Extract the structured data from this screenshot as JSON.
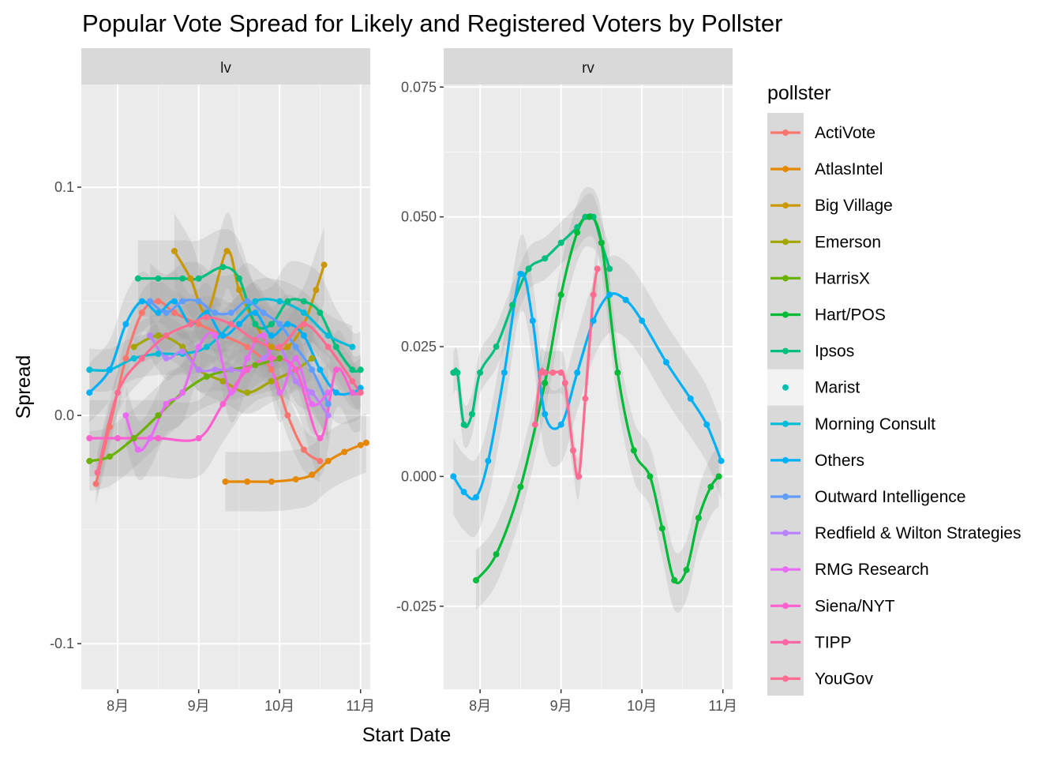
{
  "chart_data": {
    "type": "line",
    "title": "Popular Vote Spread for Likely and Registered Voters by Pollster",
    "xlabel": "Start Date",
    "ylabel": "Spread",
    "x_ticks": [
      "8月",
      "9月",
      "10月",
      "11月"
    ],
    "legend": {
      "title": "pollster",
      "position": "right",
      "entries": [
        {
          "name": "ActiVote",
          "color": "#F8766D"
        },
        {
          "name": "AtlasIntel",
          "color": "#E58700"
        },
        {
          "name": "Big Village",
          "color": "#C99800"
        },
        {
          "name": "Emerson",
          "color": "#A3A500"
        },
        {
          "name": "HarrisX",
          "color": "#6BB100"
        },
        {
          "name": "Hart/POS",
          "color": "#00BA38"
        },
        {
          "name": "Ipsos",
          "color": "#00BF7D"
        },
        {
          "name": "Marist",
          "color": "#00C0AF"
        },
        {
          "name": "Morning Consult",
          "color": "#00BCD8"
        },
        {
          "name": "Others",
          "color": "#00B0F6"
        },
        {
          "name": "Outward Intelligence",
          "color": "#619CFF"
        },
        {
          "name": "Redfield & Wilton Strategies",
          "color": "#B983FF"
        },
        {
          "name": "RMG Research",
          "color": "#E76BF3"
        },
        {
          "name": "Siena/NYT",
          "color": "#FD61D1"
        },
        {
          "name": "TIPP",
          "color": "#FF67A4"
        },
        {
          "name": "YouGov",
          "color": "#FF6C91"
        }
      ]
    },
    "grid": true,
    "panels": [
      {
        "label": "lv",
        "ylim": [
          -0.12,
          0.145
        ],
        "y_ticks": [
          -0.1,
          0.0,
          0.1
        ],
        "y_tick_labels": [
          "-0.1",
          "0.0",
          "0.1"
        ],
        "series": [
          {
            "name": "ActiVote",
            "color": "#F8766D",
            "x": [
              7.73,
              7.9,
              8.1,
              8.3,
              8.5,
              8.7,
              9.0,
              9.3,
              9.6,
              9.9,
              10.1,
              10.3,
              10.5
            ],
            "y": [
              -0.03,
              -0.005,
              0.025,
              0.045,
              0.05,
              0.045,
              0.04,
              0.035,
              0.03,
              0.02,
              0.0,
              -0.015,
              -0.02
            ]
          },
          {
            "name": "AtlasIntel",
            "color": "#E58700",
            "x": [
              9.33,
              9.6,
              9.9,
              10.2,
              10.4,
              10.6,
              10.8,
              11.0,
              11.07
            ],
            "y": [
              -0.029,
              -0.029,
              -0.029,
              -0.028,
              -0.026,
              -0.02,
              -0.016,
              -0.013,
              -0.012
            ]
          },
          {
            "name": "Big Village",
            "color": "#C99800",
            "x": [
              8.7,
              8.9,
              9.1,
              9.35,
              9.5,
              9.7,
              9.9,
              10.1,
              10.3,
              10.45,
              10.55
            ],
            "y": [
              0.072,
              0.06,
              0.045,
              0.072,
              0.055,
              0.04,
              0.03,
              0.03,
              0.04,
              0.055,
              0.066
            ]
          },
          {
            "name": "Emerson",
            "color": "#A3A500",
            "x": [
              8.2,
              8.5,
              8.8,
              9.0,
              9.3,
              9.6,
              9.9,
              10.2,
              10.4
            ],
            "y": [
              0.03,
              0.035,
              0.03,
              0.02,
              0.015,
              0.01,
              0.015,
              0.02,
              0.025
            ]
          },
          {
            "name": "HarrisX",
            "color": "#6BB100",
            "x": [
              7.65,
              7.9,
              8.2,
              8.5,
              8.8,
              9.1,
              9.4,
              9.7,
              10.0
            ],
            "y": [
              -0.02,
              -0.018,
              -0.01,
              0.0,
              0.01,
              0.017,
              0.02,
              0.022,
              0.025
            ]
          },
          {
            "name": "Ipsos",
            "color": "#00BF7D",
            "x": [
              8.25,
              8.5,
              8.8,
              9.0,
              9.3,
              9.5,
              9.7,
              9.9,
              10.1,
              10.3,
              10.5,
              10.7,
              10.9,
              11.0
            ],
            "y": [
              0.06,
              0.06,
              0.06,
              0.06,
              0.065,
              0.06,
              0.04,
              0.04,
              0.05,
              0.05,
              0.045,
              0.03,
              0.02,
              0.02
            ]
          },
          {
            "name": "Morning Consult",
            "color": "#00BCD8",
            "x": [
              7.65,
              7.9,
              8.2,
              8.5,
              8.8,
              9.1,
              9.4,
              9.7,
              10.0,
              10.3,
              10.6,
              10.9
            ],
            "y": [
              0.02,
              0.02,
              0.025,
              0.027,
              0.027,
              0.03,
              0.04,
              0.05,
              0.05,
              0.045,
              0.035,
              0.03
            ]
          },
          {
            "name": "Others",
            "color": "#00B0F6",
            "x": [
              7.65,
              7.9,
              8.1,
              8.3,
              8.5,
              8.7,
              8.9,
              9.1,
              9.3,
              9.5,
              9.7,
              9.9,
              10.1,
              10.3,
              10.5,
              10.7,
              10.9,
              11.0
            ],
            "y": [
              0.01,
              0.02,
              0.04,
              0.05,
              0.045,
              0.05,
              0.04,
              0.045,
              0.035,
              0.04,
              0.045,
              0.035,
              0.04,
              0.035,
              0.02,
              0.01,
              0.01,
              0.012
            ]
          },
          {
            "name": "Outward Intelligence",
            "color": "#619CFF",
            "x": [
              8.4,
              8.6,
              8.8,
              9.0,
              9.2,
              9.4,
              9.6,
              9.8,
              10.0,
              10.2,
              10.4,
              10.6
            ],
            "y": [
              0.05,
              0.045,
              0.05,
              0.05,
              0.045,
              0.045,
              0.05,
              0.045,
              0.04,
              0.03,
              0.02,
              0.005
            ]
          },
          {
            "name": "Redfield & Wilton Strategies",
            "color": "#B983FF",
            "x": [
              8.4,
              8.6,
              8.8,
              9.0,
              9.2,
              9.4,
              9.6,
              9.8,
              10.0,
              10.2,
              10.4,
              10.6
            ],
            "y": [
              0.035,
              0.025,
              0.028,
              0.02,
              0.02,
              0.02,
              0.02,
              0.025,
              0.03,
              0.015,
              0.01,
              0.0
            ]
          },
          {
            "name": "RMG Research",
            "color": "#E76BF3",
            "x": [
              8.1,
              8.25,
              8.4,
              8.6,
              8.8,
              9.0,
              9.2,
              9.4,
              9.6,
              9.8,
              10.0,
              10.2,
              10.4,
              10.6
            ],
            "y": [
              0.0,
              -0.015,
              -0.01,
              0.005,
              0.01,
              0.03,
              0.035,
              0.01,
              0.025,
              0.035,
              0.01,
              0.025,
              0.005,
              0.01
            ]
          },
          {
            "name": "Siena/NYT",
            "color": "#FD61D1",
            "x": [
              7.65,
              8.0,
              8.5,
              9.0,
              9.3,
              9.6,
              9.9,
              10.2,
              10.5,
              10.7,
              10.9,
              11.0
            ],
            "y": [
              -0.01,
              -0.01,
              -0.01,
              -0.01,
              0.005,
              0.02,
              0.025,
              0.02,
              -0.01,
              0.02,
              0.01,
              0.01
            ]
          },
          {
            "name": "YouGov",
            "color": "#FF6C91",
            "x": [
              7.75,
              8.0,
              8.3,
              8.6,
              8.9,
              9.1,
              9.4,
              9.7,
              10.0,
              10.3,
              10.6,
              10.9,
              11.0
            ],
            "y": [
              -0.025,
              0.01,
              0.025,
              0.035,
              0.04,
              0.043,
              0.04,
              0.033,
              0.03,
              0.04,
              0.03,
              0.015,
              0.01
            ]
          }
        ]
      },
      {
        "label": "rv",
        "ylim": [
          -0.041,
          0.0755
        ],
        "y_ticks": [
          -0.025,
          0.0,
          0.025,
          0.05,
          0.075
        ],
        "y_tick_labels": [
          "-0.025",
          "0.000",
          "0.025",
          "0.050",
          "0.075"
        ],
        "series": [
          {
            "name": "Ipsos",
            "color": "#00BF7D",
            "x": [
              7.67,
              7.72,
              7.8,
              7.9,
              8.0,
              8.2,
              8.4,
              8.6,
              8.8,
              9.0,
              9.2,
              9.3,
              9.4,
              9.5,
              9.6
            ],
            "y": [
              0.02,
              0.02,
              0.01,
              0.012,
              0.02,
              0.025,
              0.033,
              0.04,
              0.042,
              0.045,
              0.048,
              0.05,
              0.05,
              0.045,
              0.04
            ]
          },
          {
            "name": "Hart/POS",
            "color": "#00BA38",
            "x": [
              7.95,
              8.2,
              8.5,
              8.8,
              9.0,
              9.2,
              9.35,
              9.5,
              9.7,
              9.9,
              10.1,
              10.25,
              10.4,
              10.55,
              10.7,
              10.85,
              10.95
            ],
            "y": [
              -0.02,
              -0.015,
              -0.002,
              0.018,
              0.035,
              0.047,
              0.05,
              0.045,
              0.02,
              0.005,
              0.0,
              -0.01,
              -0.02,
              -0.018,
              -0.008,
              -0.002,
              0.0
            ]
          },
          {
            "name": "Others",
            "color": "#00B0F6",
            "x": [
              7.67,
              7.8,
              7.95,
              8.1,
              8.3,
              8.5,
              8.65,
              8.8,
              9.0,
              9.2,
              9.4,
              9.6,
              9.8,
              10.0,
              10.3,
              10.6,
              10.8,
              10.98
            ],
            "y": [
              0.0,
              -0.003,
              -0.004,
              0.003,
              0.02,
              0.039,
              0.03,
              0.012,
              0.01,
              0.02,
              0.03,
              0.035,
              0.034,
              0.03,
              0.022,
              0.015,
              0.01,
              0.003
            ]
          },
          {
            "name": "YouGov",
            "color": "#FF6C91",
            "x": [
              8.68,
              8.75,
              8.8,
              8.9,
              9.0,
              9.05,
              9.15,
              9.22,
              9.3,
              9.4,
              9.45
            ],
            "y": [
              0.01,
              0.02,
              0.02,
              0.02,
              0.02,
              0.018,
              0.005,
              0.0,
              0.015,
              0.035,
              0.04
            ]
          }
        ]
      }
    ]
  }
}
